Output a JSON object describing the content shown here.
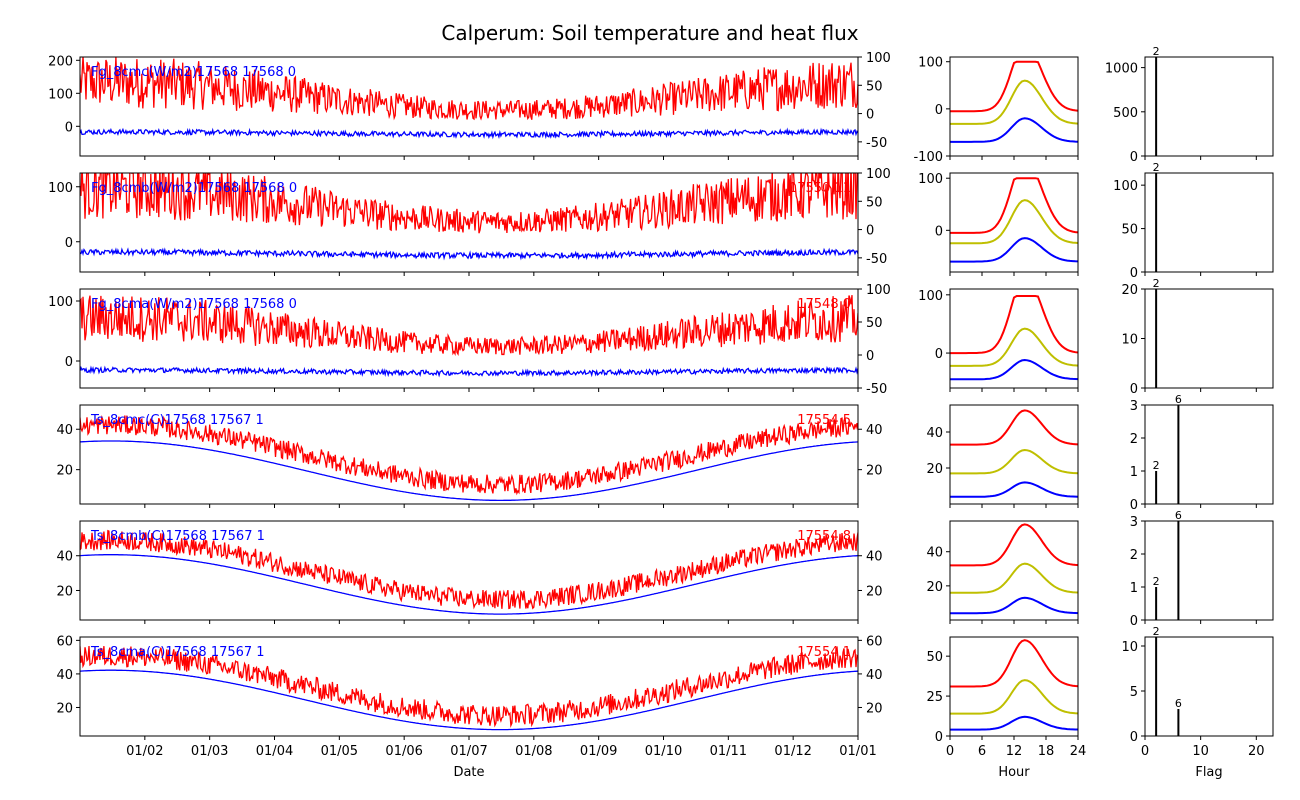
{
  "title": "Calperum: Soil temperature and heat flux",
  "colors": {
    "red": "#ff0000",
    "blue": "#0000ff",
    "olive": "#bfbf00",
    "black": "#000000"
  },
  "chart_data": [
    {
      "type": "line",
      "panel": "timeseries",
      "xlabel": "Date",
      "xticks": [
        "01/02",
        "01/03",
        "01/04",
        "01/05",
        "01/06",
        "01/07",
        "01/08",
        "01/09",
        "01/10",
        "01/11",
        "01/12",
        "01/01"
      ],
      "rows": [
        {
          "label": "Fg_8cmc(W/m2)17568 17568 0",
          "right_label": "",
          "y_range": [
            -90,
            210
          ],
          "y_ticks": [
            0,
            100,
            200
          ],
          "y2_range": [
            -75,
            100
          ],
          "y2_ticks": [
            -50,
            0,
            50,
            100
          ],
          "series": [
            {
              "color": "red",
              "base": 40,
              "amp": 70,
              "noise": 100
            },
            {
              "color": "blue",
              "base": -25,
              "amp": 8,
              "noise": 15
            }
          ]
        },
        {
          "label": "Fg_8cmb(W/m2)17568 17568 0",
          "right_label": "17550 11",
          "y_range": [
            -55,
            125
          ],
          "y_ticks": [
            0,
            100
          ],
          "y2_range": [
            -75,
            100
          ],
          "y2_ticks": [
            -50,
            0,
            50,
            100
          ],
          "series": [
            {
              "color": "red",
              "base": 30,
              "amp": 50,
              "noise": 70
            },
            {
              "color": "blue",
              "base": -25,
              "amp": 6,
              "noise": 10
            }
          ]
        },
        {
          "label": "Fg_8cma(W/m2)17568 17568 0",
          "right_label": "17548 0",
          "y_range": [
            -45,
            120
          ],
          "y_ticks": [
            0,
            100
          ],
          "y2_range": [
            -50,
            100
          ],
          "y2_ticks": [
            -50,
            0,
            50,
            100
          ],
          "series": [
            {
              "color": "red",
              "base": 20,
              "amp": 40,
              "noise": 50
            },
            {
              "color": "blue",
              "base": -20,
              "amp": 5,
              "noise": 8
            }
          ]
        },
        {
          "label": "Ts_8cmc(C)17568 17567 1",
          "right_label": "17554 5",
          "y_range": [
            3,
            52
          ],
          "y_ticks": [
            20,
            40
          ],
          "y2_range": [
            3,
            52
          ],
          "y2_ticks": [
            20,
            40
          ],
          "series": [
            {
              "color": "blue",
              "base": 0,
              "amp": 0,
              "noise": 0,
              "temp": true
            },
            {
              "color": "red",
              "base": 0,
              "amp": 0,
              "noise": 6,
              "temp": true
            }
          ]
        },
        {
          "label": "Ts_8cmb(C)17568 17567 1",
          "right_label": "17554 8",
          "y_range": [
            3,
            60
          ],
          "y_ticks": [
            20,
            40
          ],
          "y2_range": [
            3,
            60
          ],
          "y2_ticks": [
            20,
            40
          ],
          "series": [
            {
              "color": "blue",
              "base": 0,
              "amp": 0,
              "noise": 0,
              "temp": true
            },
            {
              "color": "red",
              "base": 0,
              "amp": 0,
              "noise": 7,
              "temp": true
            }
          ]
        },
        {
          "label": "Ts_8cma(C)17568 17567 1",
          "right_label": "17554 1",
          "y_range": [
            3,
            62
          ],
          "y_ticks": [
            20,
            40,
            60
          ],
          "y2_range": [
            3,
            62
          ],
          "y2_ticks": [
            20,
            40,
            60
          ],
          "series": [
            {
              "color": "blue",
              "base": 0,
              "amp": 0,
              "noise": 0,
              "temp": true
            },
            {
              "color": "red",
              "base": 0,
              "amp": 0,
              "noise": 8,
              "temp": true
            }
          ]
        }
      ]
    },
    {
      "type": "line",
      "panel": "diurnal",
      "xlabel": "Hour",
      "x_range": [
        0,
        24
      ],
      "xticks": [
        0,
        6,
        12,
        18,
        24
      ],
      "rows": [
        {
          "y_range": [
            -100,
            110
          ],
          "y_ticks": [
            -100,
            0,
            100
          ],
          "curves": [
            {
              "color": "red",
              "min": -5,
              "max": 100
            },
            {
              "color": "olive",
              "min": -32,
              "max": 60
            },
            {
              "color": "blue",
              "min": -70,
              "max": -20
            }
          ]
        },
        {
          "y_range": [
            -80,
            110
          ],
          "y_ticks": [
            0,
            100
          ],
          "curves": [
            {
              "color": "red",
              "min": -5,
              "max": 100
            },
            {
              "color": "olive",
              "min": -25,
              "max": 58
            },
            {
              "color": "blue",
              "min": -60,
              "max": -15
            }
          ]
        },
        {
          "y_range": [
            -60,
            110
          ],
          "y_ticks": [
            0,
            100
          ],
          "curves": [
            {
              "color": "red",
              "min": 0,
              "max": 98
            },
            {
              "color": "olive",
              "min": -22,
              "max": 42
            },
            {
              "color": "blue",
              "min": -45,
              "max": -12
            }
          ]
        },
        {
          "y_range": [
            0,
            55
          ],
          "y_ticks": [
            20,
            40
          ],
          "curves": [
            {
              "color": "red",
              "min": 33,
              "max": 52
            },
            {
              "color": "olive",
              "min": 17,
              "max": 30
            },
            {
              "color": "blue",
              "min": 4,
              "max": 12
            }
          ]
        },
        {
          "y_range": [
            0,
            58
          ],
          "y_ticks": [
            20,
            40
          ],
          "curves": [
            {
              "color": "red",
              "min": 32,
              "max": 56
            },
            {
              "color": "olive",
              "min": 16,
              "max": 33
            },
            {
              "color": "blue",
              "min": 4,
              "max": 13
            }
          ]
        },
        {
          "y_range": [
            0,
            62
          ],
          "y_ticks": [
            0,
            25,
            50
          ],
          "curves": [
            {
              "color": "red",
              "min": 31,
              "max": 60
            },
            {
              "color": "olive",
              "min": 14,
              "max": 35
            },
            {
              "color": "blue",
              "min": 4,
              "max": 12
            }
          ]
        }
      ]
    },
    {
      "type": "bar",
      "panel": "flag_histogram",
      "xlabel": "Flag",
      "x_range": [
        0,
        23
      ],
      "xticks": [
        0,
        10,
        20
      ],
      "rows": [
        {
          "y_range": [
            0,
            1120
          ],
          "y_ticks": [
            0,
            500,
            1000
          ],
          "bars": [
            {
              "x": 2,
              "value": 1120,
              "label": "2"
            }
          ]
        },
        {
          "y_range": [
            0,
            114
          ],
          "y_ticks": [
            0,
            50,
            100
          ],
          "bars": [
            {
              "x": 2,
              "value": 114,
              "label": "2"
            }
          ]
        },
        {
          "y_range": [
            0,
            20
          ],
          "y_ticks": [
            0,
            10,
            20
          ],
          "bars": [
            {
              "x": 2,
              "value": 20,
              "label": "2"
            }
          ]
        },
        {
          "y_range": [
            0,
            3
          ],
          "y_ticks": [
            0,
            1,
            2,
            3
          ],
          "bars": [
            {
              "x": 2,
              "value": 1,
              "label": "2"
            },
            {
              "x": 6,
              "value": 3,
              "label": "6"
            }
          ]
        },
        {
          "y_range": [
            0,
            3
          ],
          "y_ticks": [
            0,
            1,
            2,
            3
          ],
          "bars": [
            {
              "x": 2,
              "value": 1,
              "label": "2"
            },
            {
              "x": 6,
              "value": 3,
              "label": "6"
            }
          ]
        },
        {
          "y_range": [
            0,
            11
          ],
          "y_ticks": [
            0,
            5,
            10
          ],
          "bars": [
            {
              "x": 2,
              "value": 11,
              "label": "2"
            },
            {
              "x": 6,
              "value": 3,
              "label": "6"
            }
          ]
        }
      ]
    }
  ]
}
